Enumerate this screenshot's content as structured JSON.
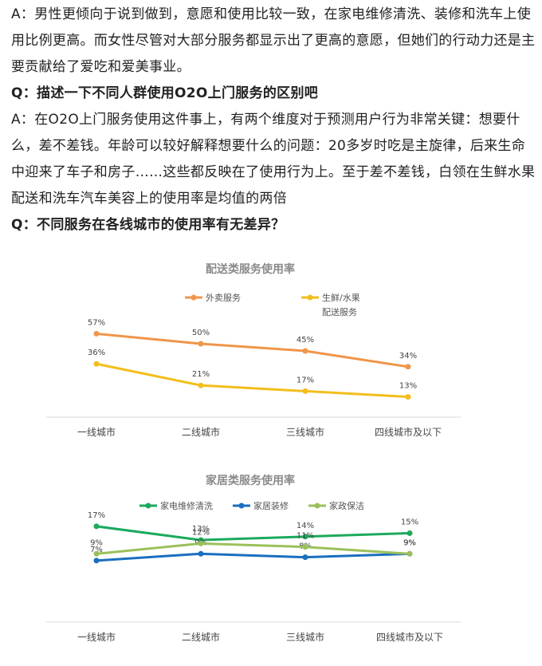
{
  "article": {
    "a1": "A：男性更倾向于说到做到，意愿和使用比较一致，在家电维修清洗、装修和洗车上使用比例更高。而女性尽管对大部分服务都显示出了更高的意愿，但她们的行动力还是主要贡献给了爱吃和爱美事业。",
    "q2": "Q：描述一下不同人群使用O2O上门服务的区别吧",
    "a2": "A：在O2O上门服务使用这件事上，有两个维度对于预测用户行为非常关键：想要什么，差不差钱。年龄可以较好解释想要什么的问题：20多岁时吃是主旋律，后来生命中迎来了车子和房子……这些都反映在了使用行为上。至于差不差钱，白领在生鲜水果配送和洗车汽车美容上的使用率是均值的两倍",
    "q3": "Q：不同服务在各线城市的使用率有无差异？"
  },
  "chart_data": [
    {
      "type": "line",
      "title": "配送类服务使用率",
      "categories": [
        "一线城市",
        "二线城市",
        "三线城市",
        "四线城市及以下"
      ],
      "series": [
        {
          "name": "外卖服务",
          "values": [
            57,
            50,
            45,
            34
          ],
          "labels": [
            "57%",
            "50%",
            "45%",
            "34%"
          ],
          "color": "#F0954A"
        },
        {
          "name": "生鲜/水果配送服务",
          "name_lines": [
            "生鲜/水果",
            "配送服务"
          ],
          "values": [
            36,
            21,
            17,
            13
          ],
          "labels": [
            "36%",
            "21%",
            "17%",
            "13%"
          ],
          "color": "#F2BE1B"
        }
      ],
      "ylim": [
        10,
        60
      ],
      "grid": false,
      "legend": "top"
    },
    {
      "type": "line",
      "title": "家居类服务使用率",
      "categories": [
        "一线城市",
        "二线城市",
        "三线城市",
        "四线城市及以下"
      ],
      "series": [
        {
          "name": "家电维修清洗",
          "values": [
            17,
            13,
            14,
            15
          ],
          "labels": [
            "17%",
            "13%",
            "14%",
            "15%"
          ],
          "color": "#1BAA5C"
        },
        {
          "name": "家居装修",
          "values": [
            7,
            9,
            8,
            9
          ],
          "labels": [
            "7%",
            "9%",
            "8%",
            "9%"
          ],
          "color": "#1A6FBF"
        },
        {
          "name": "家政保洁",
          "values": [
            9,
            12,
            11,
            9
          ],
          "labels": [
            "9%",
            "12%",
            "11%",
            "9%"
          ],
          "color": "#9BC05B"
        }
      ],
      "ylim": [
        0,
        20
      ],
      "grid": false,
      "legend": "top"
    }
  ]
}
